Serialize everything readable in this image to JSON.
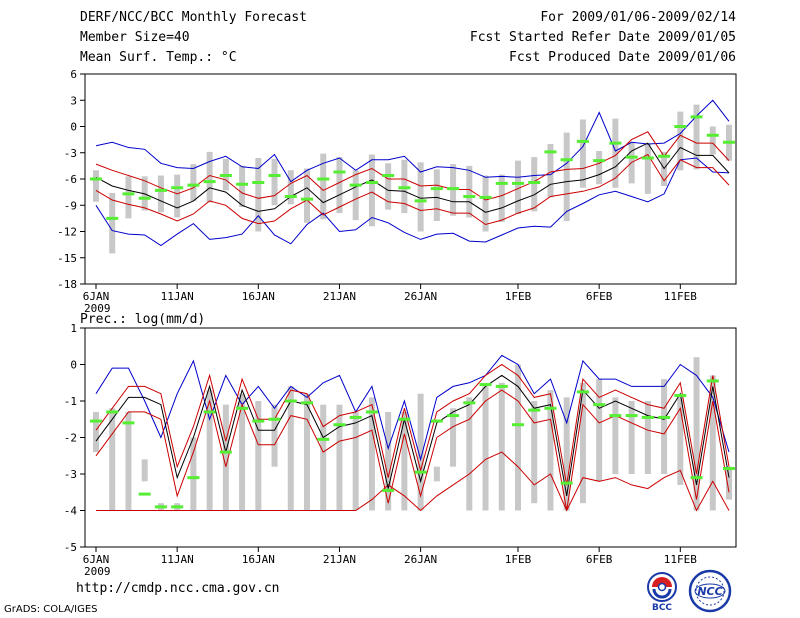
{
  "header": {
    "title": "DERF/NCC/BCC Monthly Forecast",
    "member_size": "Member Size=40",
    "period": "For 2009/01/06-2009/02/14",
    "start_date": "Fcst Started Refer Date 2009/01/05",
    "produced_date": "Fcst Produced Date 2009/01/06"
  },
  "footer": {
    "url": "http://cmdp.ncc.cma.gov.cn",
    "credit": "GrADS: COLA/IGES",
    "logo_bcc": "BCC",
    "logo_ncc": "NCC"
  },
  "colors": {
    "box": "#c8c8c8",
    "median": "#55ee33",
    "upper": "#0000cc",
    "mean": "#000000",
    "band": "#cc0000",
    "lower_prec": "#cc0000",
    "frame": "#000000"
  },
  "chart_data": [
    {
      "type": "box-ensemble-timeseries",
      "title": "Mean Surf. Temp.: °C",
      "unit": "°C",
      "ylim": [
        -18,
        6
      ],
      "yticks": [
        6,
        3,
        0,
        -3,
        -6,
        -9,
        -12,
        -15,
        -18
      ],
      "xtick_labels": [
        "6JAN",
        "11JAN",
        "16JAN",
        "21JAN",
        "26JAN",
        "1FEB",
        "6FEB",
        "11FEB"
      ],
      "xtick_days": [
        0,
        5,
        10,
        15,
        20,
        26,
        31,
        36
      ],
      "year_label": "2009",
      "days": 40,
      "box_low": [
        -8.6,
        -14.5,
        -10.5,
        -9.6,
        -9.8,
        -10.4,
        -8.5,
        -8.7,
        -7.3,
        -9.2,
        -12.0,
        -9.0,
        -8.9,
        -11.0,
        -10.6,
        -9.9,
        -10.7,
        -11.4,
        -9.5,
        -9.9,
        -12.0,
        -10.8,
        -10.2,
        -10.4,
        -12.0,
        -10.9,
        -10.0,
        -9.7,
        -8.1,
        -10.8,
        -7.0,
        -6.6,
        -7.0,
        -6.5,
        -7.7,
        -6.8,
        -5.0,
        -4.9,
        -3.2,
        -3.9
      ],
      "box_high": [
        -5.0,
        -7.6,
        -5.7,
        -5.7,
        -5.6,
        -5.5,
        -4.3,
        -2.9,
        -3.7,
        -4.5,
        -3.6,
        -3.7,
        -5.0,
        -4.8,
        -3.1,
        -3.5,
        -5.0,
        -3.2,
        -4.2,
        -3.8,
        -4.1,
        -4.9,
        -4.3,
        -4.5,
        -5.6,
        -5.5,
        -3.9,
        -3.5,
        -2.0,
        -0.7,
        0.8,
        -2.8,
        0.9,
        -1.8,
        -2.0,
        -2.9,
        1.7,
        2.5,
        0.0,
        0.2
      ],
      "median": [
        -6.0,
        -10.5,
        -7.7,
        -8.2,
        -7.3,
        -7.0,
        -6.7,
        -6.3,
        -5.6,
        -6.6,
        -6.4,
        -5.6,
        -8.0,
        -8.3,
        -6.0,
        -5.2,
        -6.7,
        -6.4,
        -5.6,
        -7.0,
        -8.5,
        -7.1,
        -7.1,
        -8.0,
        -8.1,
        -6.5,
        -6.5,
        -6.4,
        -2.9,
        -3.8,
        -1.7,
        -3.9,
        -1.9,
        -3.5,
        -3.6,
        -3.4,
        0.0,
        1.1,
        -1.0,
        -1.8
      ],
      "upper": [
        -2.2,
        -1.8,
        -2.4,
        -2.6,
        -4.2,
        -4.7,
        -4.8,
        -4.0,
        -3.4,
        -4.6,
        -4.8,
        -3.2,
        -6.3,
        -5.0,
        -4.2,
        -3.6,
        -5.0,
        -3.8,
        -3.8,
        -3.4,
        -5.2,
        -4.6,
        -4.7,
        -5.0,
        -5.8,
        -5.7,
        -5.8,
        -5.6,
        -5.5,
        -4.2,
        -2.3,
        1.6,
        -2.8,
        -1.8,
        -2.0,
        -1.9,
        -0.8,
        1.2,
        3.0,
        0.6
      ],
      "mean": [
        -5.8,
        -6.8,
        -7.3,
        -7.7,
        -8.5,
        -9.3,
        -8.5,
        -7.0,
        -7.5,
        -9.0,
        -9.7,
        -9.4,
        -8.0,
        -7.0,
        -8.7,
        -7.8,
        -6.9,
        -6.1,
        -7.3,
        -7.4,
        -8.2,
        -8.1,
        -8.6,
        -8.6,
        -9.8,
        -9.3,
        -8.5,
        -7.8,
        -6.6,
        -6.3,
        -6.1,
        -5.5,
        -4.6,
        -2.8,
        -1.9,
        -4.8,
        -2.4,
        -3.3,
        -3.3,
        -5.3
      ],
      "band_hi": [
        -4.3,
        -5.0,
        -5.6,
        -6.2,
        -7.0,
        -7.7,
        -7.0,
        -5.6,
        -6.1,
        -7.6,
        -8.2,
        -7.9,
        -6.5,
        -5.6,
        -7.3,
        -6.4,
        -5.5,
        -4.8,
        -6.0,
        -6.0,
        -6.8,
        -6.7,
        -7.2,
        -7.2,
        -8.4,
        -7.9,
        -7.1,
        -6.3,
        -5.2,
        -4.9,
        -4.8,
        -4.2,
        -3.3,
        -1.5,
        -0.6,
        -3.4,
        -1.0,
        -1.9,
        -1.9,
        -3.9
      ],
      "band_lo": [
        -7.3,
        -8.4,
        -8.9,
        -9.3,
        -10.0,
        -10.8,
        -10.0,
        -8.5,
        -9.0,
        -10.5,
        -11.1,
        -10.8,
        -9.4,
        -8.4,
        -10.1,
        -9.2,
        -8.3,
        -7.5,
        -8.6,
        -8.8,
        -9.6,
        -9.4,
        -9.9,
        -9.9,
        -11.2,
        -10.7,
        -9.9,
        -9.3,
        -8.0,
        -7.7,
        -7.4,
        -6.9,
        -5.9,
        -4.1,
        -3.2,
        -6.2,
        -3.8,
        -4.7,
        -4.7,
        -6.7
      ],
      "lower": [
        -9.0,
        -11.9,
        -12.3,
        -12.4,
        -13.6,
        -12.3,
        -11.1,
        -12.9,
        -12.7,
        -12.3,
        -10.2,
        -12.4,
        -13.4,
        -11.2,
        -9.9,
        -12.0,
        -11.8,
        -10.4,
        -11.0,
        -12.1,
        -12.9,
        -12.3,
        -12.2,
        -13.1,
        -13.2,
        -12.4,
        -11.6,
        -11.4,
        -11.5,
        -9.7,
        -8.8,
        -7.8,
        -7.4,
        -8.0,
        -8.6,
        -7.7,
        -3.8,
        -3.6,
        -5.2,
        -5.3
      ]
    },
    {
      "type": "box-ensemble-timeseries",
      "title": "Prec.: log(mm/d)",
      "unit": "log(mm/d)",
      "ylim": [
        -5,
        1
      ],
      "yticks": [
        1,
        0,
        -1,
        -2,
        -3,
        -4,
        -5
      ],
      "xtick_labels": [
        "6JAN",
        "11JAN",
        "16JAN",
        "21JAN",
        "26JAN",
        "1FEB",
        "6FEB",
        "11FEB"
      ],
      "xtick_days": [
        0,
        5,
        10,
        15,
        20,
        26,
        31,
        36
      ],
      "year_label": "2009",
      "days": 40,
      "box_low": [
        -2.4,
        -4.0,
        -4.0,
        -2.6,
        -4.0,
        -4.0,
        -4.0,
        -4.0,
        -4.0,
        -4.0,
        -4.0,
        -2.8,
        -4.0,
        -4.0,
        -4.0,
        -4.0,
        -4.0,
        -4.0,
        -4.0,
        -4.0,
        -4.0,
        -3.2,
        -2.8,
        -4.0,
        -4.0,
        -4.0,
        -4.0,
        -3.8,
        -4.0,
        -4.0,
        -3.8,
        -3.2,
        -3.0,
        -3.0,
        -3.0,
        -3.0,
        -3.3,
        -4.0,
        -4.0,
        -3.7
      ],
      "box_high": [
        -1.3,
        -1.2,
        -1.3,
        -3.2,
        -3.8,
        -3.8,
        -2.0,
        -0.7,
        -1.1,
        -0.8,
        -1.0,
        -1.1,
        -0.6,
        -0.8,
        -1.1,
        -1.1,
        -1.3,
        -0.9,
        -1.3,
        -1.3,
        -0.8,
        -2.8,
        -1.2,
        -0.9,
        -0.6,
        -0.5,
        0.0,
        -1.0,
        -0.7,
        -0.9,
        -0.5,
        -0.4,
        -0.9,
        -1.0,
        -1.0,
        -0.4,
        -0.9,
        0.2,
        -0.3,
        -2.8
      ],
      "median": [
        -1.55,
        -1.3,
        -1.6,
        -3.55,
        -3.9,
        -3.9,
        -3.1,
        -1.3,
        -2.4,
        -1.2,
        -1.55,
        -1.5,
        -1.0,
        -1.05,
        -2.05,
        -1.65,
        -1.45,
        -1.3,
        -3.45,
        -1.5,
        -2.95,
        -1.55,
        -1.4,
        -1.05,
        -0.55,
        -0.6,
        -1.65,
        -1.25,
        -1.2,
        -3.25,
        -0.75,
        -1.1,
        -1.4,
        -1.4,
        -1.45,
        -1.45,
        -0.85,
        -3.1,
        -0.45,
        -2.85
      ],
      "upper": [
        -0.8,
        -0.1,
        -0.1,
        -1.0,
        -2.0,
        -0.8,
        0.1,
        -1.5,
        -0.3,
        -1.1,
        -0.6,
        -1.2,
        -0.6,
        -0.9,
        -0.5,
        -0.3,
        -1.3,
        -0.6,
        -2.3,
        -1.0,
        -2.6,
        -0.9,
        -0.6,
        -0.5,
        -0.3,
        0.25,
        0.0,
        -0.8,
        -0.4,
        -1.6,
        0.1,
        -0.4,
        -0.4,
        -0.6,
        -0.6,
        -0.6,
        0.0,
        -0.3,
        -0.9,
        -2.4
      ],
      "mean": [
        -2.1,
        -1.5,
        -0.9,
        -0.9,
        -1.1,
        -3.1,
        -2.0,
        -0.6,
        -2.4,
        -0.7,
        -1.8,
        -1.8,
        -1.0,
        -1.1,
        -2.0,
        -1.7,
        -1.6,
        -1.4,
        -3.4,
        -1.5,
        -3.2,
        -1.6,
        -1.3,
        -1.1,
        -0.6,
        -0.3,
        -0.6,
        -1.2,
        -1.1,
        -3.6,
        -0.7,
        -1.2,
        -1.0,
        -1.2,
        -1.4,
        -1.5,
        -0.8,
        -3.3,
        -0.6,
        -3.1
      ],
      "band_hi": [
        -1.8,
        -1.2,
        -0.6,
        -0.6,
        -0.8,
        -2.8,
        -1.7,
        -0.3,
        -2.1,
        -0.4,
        -1.5,
        -1.5,
        -0.7,
        -0.8,
        -1.7,
        -1.4,
        -1.3,
        -1.1,
        -3.1,
        -1.2,
        -2.9,
        -1.3,
        -1.0,
        -0.8,
        -0.3,
        0.0,
        -0.3,
        -0.9,
        -0.8,
        -3.3,
        -0.4,
        -0.9,
        -0.7,
        -0.9,
        -1.1,
        -1.2,
        -0.5,
        -3.0,
        -0.3,
        -2.8
      ],
      "band_lo": [
        -2.5,
        -1.9,
        -1.3,
        -1.3,
        -1.5,
        -3.6,
        -2.4,
        -1.0,
        -2.8,
        -1.1,
        -2.2,
        -2.2,
        -1.4,
        -1.5,
        -2.4,
        -2.1,
        -2.0,
        -1.8,
        -3.8,
        -1.9,
        -3.6,
        -2.0,
        -1.7,
        -1.5,
        -1.0,
        -0.7,
        -1.0,
        -1.6,
        -1.5,
        -4.0,
        -1.1,
        -1.6,
        -1.4,
        -1.6,
        -1.8,
        -1.9,
        -1.2,
        -3.7,
        -1.0,
        -3.5
      ],
      "lower": [
        -4.0,
        -4.0,
        -4.0,
        -4.0,
        -4.0,
        -4.0,
        -4.0,
        -4.0,
        -4.0,
        -4.0,
        -4.0,
        -4.0,
        -4.0,
        -4.0,
        -4.0,
        -4.0,
        -4.0,
        -3.7,
        -3.3,
        -3.6,
        -4.0,
        -3.6,
        -3.3,
        -3.0,
        -2.6,
        -2.4,
        -2.8,
        -3.3,
        -3.0,
        -4.0,
        -3.1,
        -3.2,
        -3.1,
        -3.3,
        -3.4,
        -3.1,
        -2.9,
        -4.0,
        -3.2,
        -4.0
      ]
    }
  ]
}
